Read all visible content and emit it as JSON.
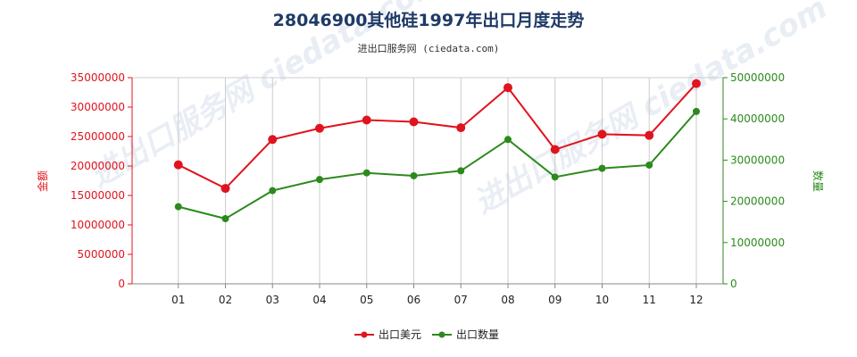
{
  "page": {
    "title": "28046900其他硅1997年出口月度走势",
    "subtitle": "进出口服务网 (ciedata.com)",
    "watermark": "进出口服务网 ciedata.com"
  },
  "colors": {
    "usd": "#e0141e",
    "qty": "#2c8a1c",
    "title": "#1f3a66",
    "grid": "#cccccc"
  },
  "chart_data": {
    "type": "line",
    "title": "28046900其他硅1997年出口月度走势",
    "categories": [
      "01",
      "02",
      "03",
      "04",
      "05",
      "06",
      "07",
      "08",
      "09",
      "10",
      "11",
      "12"
    ],
    "series": [
      {
        "name": "出口美元",
        "axis": "left",
        "values": [
          20200000,
          16200000,
          24500000,
          26400000,
          27800000,
          27500000,
          26500000,
          33300000,
          22800000,
          25400000,
          25200000,
          34000000
        ]
      },
      {
        "name": "出口数量",
        "axis": "right",
        "values": [
          18700000,
          15800000,
          22600000,
          25300000,
          26900000,
          26200000,
          27400000,
          35000000,
          25900000,
          28000000,
          28800000,
          41800000
        ]
      }
    ],
    "y_left": {
      "label": "金额",
      "ylim": [
        0,
        35000000
      ],
      "ticks": [
        "0",
        "5000000",
        "10000000",
        "15000000",
        "20000000",
        "25000000",
        "30000000",
        "35000000"
      ]
    },
    "y_right": {
      "label": "数量",
      "ylim": [
        0,
        50000000
      ],
      "ticks": [
        "0",
        "10000000",
        "20000000",
        "30000000",
        "40000000",
        "50000000"
      ]
    },
    "grid": "vertical",
    "legend": "bottom-center"
  }
}
